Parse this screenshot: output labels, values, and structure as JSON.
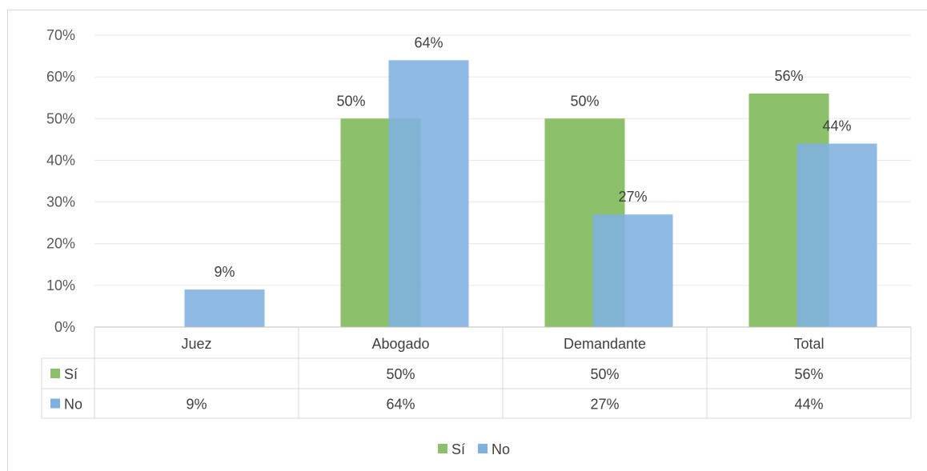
{
  "chart_data": {
    "type": "bar",
    "categories": [
      "Juez",
      "Abogado",
      "Demandante",
      "Total"
    ],
    "series": [
      {
        "name": "Sí",
        "color": "#8cc06a",
        "values": [
          null,
          50,
          50,
          56
        ],
        "labels": [
          "",
          "50%",
          "50%",
          "56%"
        ]
      },
      {
        "name": "No",
        "color": "#7fb1e0",
        "values": [
          9,
          64,
          27,
          44
        ],
        "labels": [
          "9%",
          "64%",
          "27%",
          "44%"
        ]
      }
    ],
    "ylim": [
      0,
      70
    ],
    "y_ticks": [
      "0%",
      "10%",
      "20%",
      "30%",
      "40%",
      "50%",
      "60%",
      "70%"
    ],
    "grid": true,
    "data_table": true,
    "legend": {
      "position": "bottom",
      "entries": [
        "Sí",
        "No"
      ]
    }
  }
}
